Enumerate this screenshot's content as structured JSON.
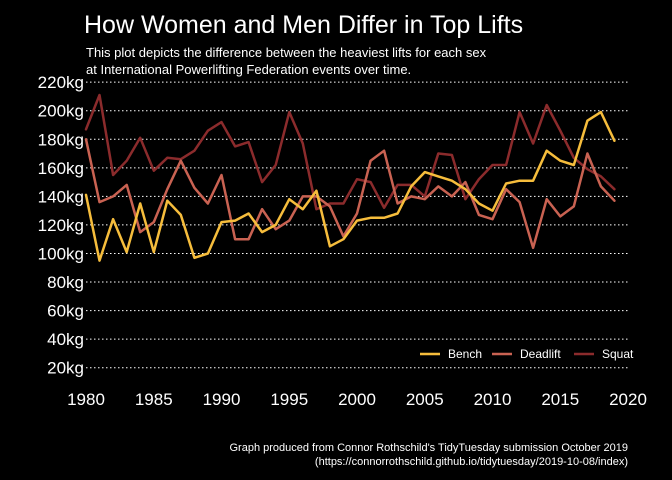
{
  "chart_data": {
    "type": "line",
    "title": "How Women and Men Differ in Top Lifts",
    "subtitle_lines": [
      "This plot depicts the difference between the heaviest lifts for each sex",
      "at International Powerlifting Federation events over time."
    ],
    "caption_lines": [
      "Graph produced from Connor Rothschild's TidyTuesday submission October 2019",
      "(https://connorrothschild.github.io/tidytuesday/2019-10-08/index)"
    ],
    "xlabel": "",
    "ylabel": "",
    "xlim": [
      1980,
      2020
    ],
    "ylim": [
      10,
      225
    ],
    "x_ticks": [
      1980,
      1985,
      1990,
      1995,
      2000,
      2005,
      2010,
      2015,
      2020
    ],
    "y_ticks": [
      20,
      40,
      60,
      80,
      100,
      120,
      140,
      160,
      180,
      200,
      220
    ],
    "y_tick_labels": [
      "20kg",
      "40kg",
      "60kg",
      "80kg",
      "100kg",
      "120kg",
      "140kg",
      "160kg",
      "180kg",
      "200kg",
      "220kg"
    ],
    "grid": "horizontal dotted",
    "legend_position": "bottom-right",
    "x": [
      1980,
      1981,
      1982,
      1983,
      1984,
      1985,
      1986,
      1987,
      1988,
      1989,
      1990,
      1991,
      1992,
      1993,
      1994,
      1995,
      1996,
      1997,
      1998,
      1999,
      2000,
      2001,
      2002,
      2003,
      2004,
      2005,
      2006,
      2007,
      2008,
      2009,
      2010,
      2011,
      2012,
      2013,
      2014,
      2015,
      2016,
      2017,
      2018,
      2019
    ],
    "series": [
      {
        "name": "Bench",
        "color": "#f6bd3c",
        "values": [
          141,
          95,
          124,
          101,
          135,
          101,
          137,
          127,
          97,
          100,
          122,
          123,
          128,
          115,
          120,
          138,
          131,
          144,
          105,
          110,
          123,
          125,
          125,
          128,
          147,
          157,
          154,
          151,
          145,
          135,
          130,
          149,
          151,
          151,
          172,
          165,
          162,
          193,
          199,
          179
        ]
      },
      {
        "name": "Deadlift",
        "color": "#c96252",
        "values": [
          180,
          136,
          140,
          148,
          115,
          122,
          145,
          165,
          146,
          135,
          155,
          110,
          110,
          131,
          117,
          123,
          140,
          140,
          133,
          112,
          128,
          165,
          172,
          135,
          140,
          138,
          147,
          140,
          150,
          127,
          124,
          145,
          136,
          104,
          138,
          126,
          133,
          170,
          147,
          137
        ]
      },
      {
        "name": "Squat",
        "color": "#8b2b2c",
        "values": [
          187,
          211,
          155,
          165,
          181,
          158,
          167,
          166,
          172,
          186,
          192,
          175,
          178,
          150,
          162,
          199,
          177,
          131,
          135,
          135,
          152,
          150,
          132,
          148,
          148,
          140,
          170,
          169,
          138,
          152,
          162,
          162,
          199,
          177,
          204,
          186,
          167,
          159,
          154,
          145
        ]
      }
    ]
  }
}
